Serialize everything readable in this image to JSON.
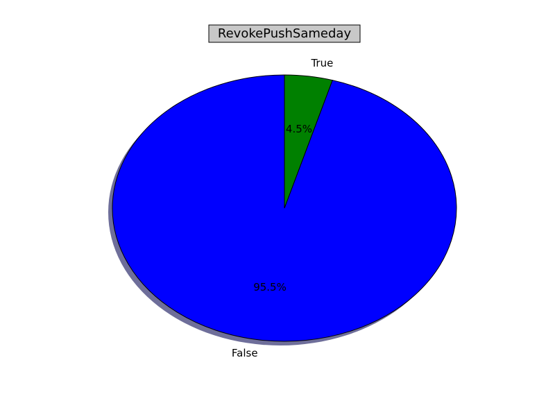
{
  "chart_data": {
    "type": "pie",
    "title": "RevokePushSameday",
    "title_boxed": true,
    "start_angle_deg": 90,
    "direction": "counterclockwise",
    "shadow": true,
    "legend": "none",
    "slices": [
      {
        "label": "False",
        "value": 95.5,
        "percent_label": "95.5%",
        "color": "#0000ff"
      },
      {
        "label": "True",
        "value": 4.5,
        "percent_label": "4.5%",
        "color": "#008000"
      }
    ]
  }
}
